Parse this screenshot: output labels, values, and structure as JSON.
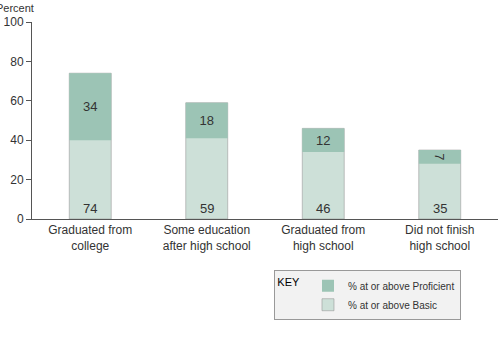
{
  "chart_data": {
    "type": "bar",
    "y_label": "Percent",
    "legend_title": "KEY",
    "categories": [
      "Graduated from college",
      "Some education after high school",
      "Graduated from high school",
      "Did not finish high school"
    ],
    "series": [
      {
        "name": "% at or above Basic",
        "color": "#cde0d8",
        "values": [
          74,
          59,
          46,
          35
        ]
      },
      {
        "name": "% at or above Proficient",
        "color": "#9cc4b5",
        "values": [
          34,
          18,
          12,
          7
        ]
      }
    ],
    "ylim": [
      0,
      100
    ],
    "yticks": [
      0,
      20,
      40,
      60,
      80,
      100
    ],
    "grid": false,
    "legend": "lower right",
    "data_labels": true
  }
}
